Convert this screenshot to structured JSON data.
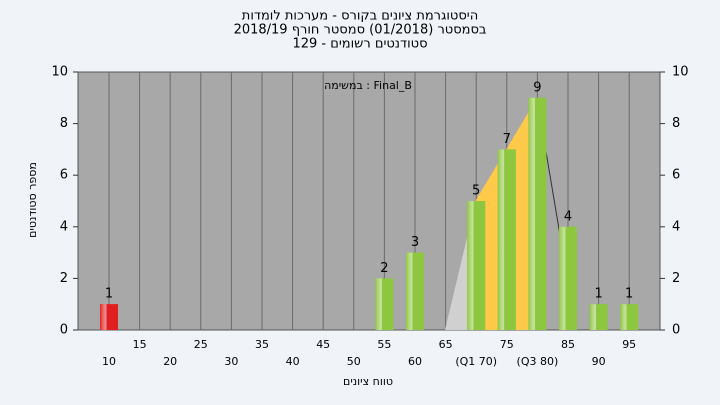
{
  "chart_data": {
    "type": "bar",
    "title": "היסטוגרמת ציונים בקורס - מערכות לומדות",
    "subtitle": "בסמסטר (01/2018) סמסטר חורף 2018/19",
    "subtitle2": "סטודנטים רשומים - 129",
    "annotation": "במשימה : Final_B",
    "x_label": "טווח ציונים",
    "y_label": "מספר סטודנטים",
    "categories": [
      "10",
      "15",
      "20",
      "25",
      "30",
      "35",
      "40",
      "45",
      "50",
      "55",
      "60",
      "65",
      "(Q1 70)",
      "75",
      "(Q3 80)",
      "85",
      "90",
      "95"
    ],
    "values": [
      1,
      0,
      0,
      0,
      0,
      0,
      0,
      0,
      0,
      2,
      3,
      0,
      5,
      7,
      9,
      4,
      1,
      1
    ],
    "colors": [
      "#e02020",
      "#8dc63f",
      "#8dc63f",
      "#8dc63f",
      "#8dc63f",
      "#8dc63f",
      "#8dc63f",
      "#8dc63f",
      "#8dc63f",
      "#8dc63f",
      "#8dc63f",
      "#8dc63f",
      "#8dc63f",
      "#8dc63f",
      "#8dc63f",
      "#8dc63f",
      "#8dc63f",
      "#8dc63f"
    ],
    "ylim": [
      0,
      10
    ],
    "yticks": [
      0,
      2,
      4,
      6,
      8,
      10
    ],
    "y2lim": [
      0,
      10
    ],
    "y2ticks": [
      0,
      2,
      4,
      6,
      8,
      10
    ],
    "grid": true
  }
}
